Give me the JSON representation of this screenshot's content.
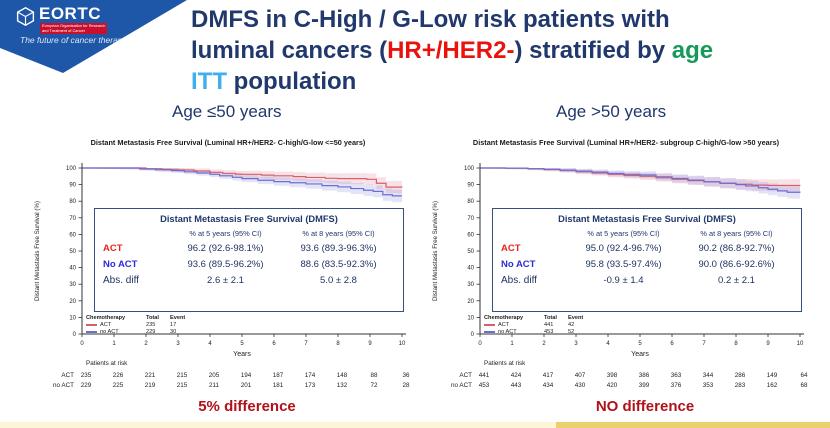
{
  "slide": {
    "banner": {
      "logo_text": "EORTC",
      "org_line1": "European Organisation for Research",
      "org_line2": "and Treatment of Cancer",
      "tagline": "The future of cancer therapy",
      "bg_color": "#1f57a8",
      "accent_red": "#c8102e"
    },
    "title": {
      "line1": "DMFS in C-High / G-Low risk patients with",
      "line2_pre": "luminal cancers (",
      "line2_red": "HR+/HER2-",
      "line2_post": ") stratified by ",
      "line2_green": "age",
      "line3_blue": "ITT",
      "line3_post": " population",
      "navy": "#20386b",
      "red": "#e8130f",
      "green": "#169a5a",
      "light_blue": "#3fb0e8"
    },
    "footer_left": "5% difference",
    "footer_right": "NO difference",
    "footer_color": "#b1121a"
  },
  "chart_data": [
    {
      "type": "line",
      "subtitle": "Age ≤50 years",
      "title": "Distant Metastasis Free Survival (Luminal HR+/HER2- C-high/G-low <=50 years)",
      "xlabel": "Years",
      "ylabel": "Distant Metastasis Free Survival (%)",
      "xlim": [
        0,
        10
      ],
      "ylim": [
        0,
        100
      ],
      "xticks": [
        0,
        1,
        2,
        3,
        4,
        5,
        6,
        7,
        8,
        9,
        10
      ],
      "yticks": [
        0,
        10,
        20,
        30,
        40,
        50,
        60,
        70,
        80,
        90,
        100
      ],
      "series": [
        {
          "name": "ACT",
          "color": "#d4606e",
          "band": "rgba(221,110,130,0.20)",
          "points": [
            [
              0,
              100
            ],
            [
              1.7,
              100
            ],
            [
              2,
              99.6
            ],
            [
              2.5,
              99.2
            ],
            [
              3,
              98.8
            ],
            [
              3.5,
              98.2
            ],
            [
              4,
              97.4
            ],
            [
              4.4,
              96.8
            ],
            [
              4.8,
              96.3
            ],
            [
              5,
              96.2
            ],
            [
              5.6,
              95.7
            ],
            [
              6,
              95.3
            ],
            [
              6.6,
              94.8
            ],
            [
              7,
              94.3
            ],
            [
              7.6,
              93.8
            ],
            [
              8,
              93.6
            ],
            [
              8.9,
              93.2
            ],
            [
              9.2,
              90.8
            ],
            [
              9.5,
              88.5
            ],
            [
              10,
              88.3
            ]
          ]
        },
        {
          "name": "no ACT",
          "color": "#6a6ed2",
          "band": "rgba(120,120,220,0.20)",
          "points": [
            [
              0,
              100
            ],
            [
              1.4,
              100
            ],
            [
              1.8,
              99.4
            ],
            [
              2.3,
              98.9
            ],
            [
              2.8,
              98.4
            ],
            [
              3.2,
              97.7
            ],
            [
              3.6,
              97.0
            ],
            [
              4,
              96.2
            ],
            [
              4.3,
              95.3
            ],
            [
              4.7,
              94.4
            ],
            [
              5,
              93.6
            ],
            [
              5.5,
              92.6
            ],
            [
              6,
              91.8
            ],
            [
              6.5,
              91.1
            ],
            [
              7,
              90.4
            ],
            [
              7.5,
              89.4
            ],
            [
              8,
              88.6
            ],
            [
              8.4,
              87.6
            ],
            [
              8.8,
              86.6
            ],
            [
              9.1,
              85.9
            ],
            [
              9.4,
              83.9
            ],
            [
              9.7,
              83.2
            ],
            [
              10,
              83.2
            ]
          ]
        }
      ],
      "summary_table": {
        "title": "Distant Metastasis Free Survival (DMFS)",
        "col_5y": "% at 5 years (95% CI)",
        "col_8y": "% at 8 years (95% CI)",
        "rows": [
          {
            "label": "ACT",
            "at5": "96.2 (92.6-98.1%)",
            "at8": "93.6 (89.3-96.3%)"
          },
          {
            "label": "No ACT",
            "at5": "93.6 (89.5-96.2%)",
            "at8": "88.6 (83.5-92.3%)"
          },
          {
            "label": "Abs. diff",
            "at5": "2.6 ± 2.1",
            "at8": "5.0 ± 2.8"
          }
        ]
      },
      "legend": {
        "chemo": "Chemotherapy",
        "total": "Total",
        "event": "Event",
        "rows": [
          {
            "label": "ACT",
            "total": "235",
            "event": "17"
          },
          {
            "label": "no ACT",
            "total": "229",
            "event": "30"
          }
        ]
      },
      "patients_at_risk": {
        "label": "Patients at risk",
        "rows": [
          {
            "label": "ACT",
            "values": [
              "235",
              "226",
              "221",
              "215",
              "205",
              "194",
              "187",
              "174",
              "148",
              "88",
              "36"
            ]
          },
          {
            "label": "no ACT",
            "values": [
              "229",
              "225",
              "219",
              "215",
              "211",
              "201",
              "181",
              "173",
              "132",
              "72",
              "28"
            ]
          }
        ]
      },
      "footer": "5% difference"
    },
    {
      "type": "line",
      "subtitle": "Age >50 years",
      "title": "Distant Metastasis Free Survival (Luminal HR+/HER2- subgroup C-high/G-low >50 years)",
      "xlabel": "Years",
      "ylabel": "Distant Metastasis Free Survival (%)",
      "xlim": [
        0,
        10
      ],
      "ylim": [
        0,
        100
      ],
      "xticks": [
        0,
        1,
        2,
        3,
        4,
        5,
        6,
        7,
        8,
        9,
        10
      ],
      "yticks": [
        0,
        10,
        20,
        30,
        40,
        50,
        60,
        70,
        80,
        90,
        100
      ],
      "series": [
        {
          "name": "ACT",
          "color": "#d4606e",
          "band": "rgba(221,110,130,0.20)",
          "points": [
            [
              0,
              100
            ],
            [
              0.8,
              99.9
            ],
            [
              1.5,
              99.5
            ],
            [
              2,
              99.1
            ],
            [
              2.5,
              98.5
            ],
            [
              3,
              97.7
            ],
            [
              3.5,
              97.0
            ],
            [
              4,
              96.2
            ],
            [
              4.5,
              95.5
            ],
            [
              5,
              95.0
            ],
            [
              5.5,
              94.1
            ],
            [
              6,
              93.2
            ],
            [
              6.5,
              92.4
            ],
            [
              7,
              91.6
            ],
            [
              7.5,
              90.8
            ],
            [
              8,
              90.2
            ],
            [
              8.5,
              89.7
            ],
            [
              9,
              89.5
            ],
            [
              10,
              89.4
            ]
          ]
        },
        {
          "name": "no ACT",
          "color": "#6a6ed2",
          "band": "rgba(120,120,220,0.20)",
          "points": [
            [
              0,
              100
            ],
            [
              0.8,
              99.9
            ],
            [
              1.5,
              99.6
            ],
            [
              2,
              99.2
            ],
            [
              2.5,
              98.7
            ],
            [
              3,
              98.1
            ],
            [
              3.5,
              97.5
            ],
            [
              4,
              96.7
            ],
            [
              4.5,
              96.2
            ],
            [
              5,
              95.8
            ],
            [
              5.5,
              94.7
            ],
            [
              6,
              93.7
            ],
            [
              6.5,
              92.7
            ],
            [
              7,
              91.7
            ],
            [
              7.5,
              90.8
            ],
            [
              8,
              90.0
            ],
            [
              8.3,
              89.2
            ],
            [
              8.7,
              88.1
            ],
            [
              9,
              87.2
            ],
            [
              9.3,
              86.2
            ],
            [
              9.6,
              85.4
            ],
            [
              10,
              85.2
            ]
          ]
        }
      ],
      "summary_table": {
        "title": "Distant Metastasis Free Survival (DMFS)",
        "col_5y": "% at 5 years (95% CI)",
        "col_8y": "% at 8 years (95% CI)",
        "rows": [
          {
            "label": "ACT",
            "at5": "95.0 (92.4-96.7%)",
            "at8": "90.2 (86.8-92.7%)"
          },
          {
            "label": "No ACT",
            "at5": "95.8 (93.5-97.4%)",
            "at8": "90.0 (86.6-92.6%)"
          },
          {
            "label": "Abs. diff",
            "at5": "-0.9  ± 1.4",
            "at8": "0.2 ± 2.1"
          }
        ]
      },
      "legend": {
        "chemo": "Chemotherapy",
        "total": "Total",
        "event": "Event",
        "rows": [
          {
            "label": "ACT",
            "total": "441",
            "event": "42"
          },
          {
            "label": "no ACT",
            "total": "453",
            "event": "52"
          }
        ]
      },
      "patients_at_risk": {
        "label": "Patients at risk",
        "rows": [
          {
            "label": "ACT",
            "values": [
              "441",
              "424",
              "417",
              "407",
              "398",
              "386",
              "363",
              "344",
              "286",
              "149",
              "64"
            ]
          },
          {
            "label": "no ACT",
            "values": [
              "453",
              "443",
              "434",
              "430",
              "420",
              "399",
              "376",
              "353",
              "283",
              "162",
              "68"
            ]
          }
        ]
      },
      "footer": "NO difference"
    }
  ]
}
